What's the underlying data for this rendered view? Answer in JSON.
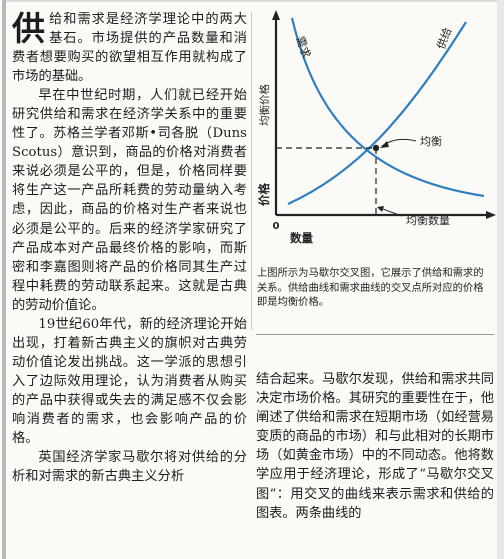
{
  "left": {
    "dropcap": "供",
    "para1": "给和需求是经济学理论中的两大基石。市场提供的产品数量和消费者想要购买的欲望相互作用就构成了市场的基础。",
    "para2": "早在中世纪时期，人们就已经开始研究供给和需求在经济学关系中的重要性了。苏格兰学者邓斯•司各脱（Duns Scotus）意识到，商品的价格对消费者来说必须是公平的，但是，价格同样要将生产这一产品所耗费的劳动量纳入考虑，因此，商品的价格对生产者来说也必须是公平的。后来的经济学家研究了产品成本对产品最终价格的影响，而斯密和李嘉图则将产品的价格同其生产过程中耗费的劳动联系起来。这就是古典的劳动价值论。",
    "para3": "19世纪60年代，新的经济理论开始出现，打着新古典主义的旗帜对古典劳动价值论发出挑战。这一学派的思想引入了边际效用理论，认为消费者从购买的产品中获得或失去的满足感不仅会影响消费者的需求，也会影响产品的价格。",
    "para4": "英国经济学家马歇尔将对供给的分析和对需求的新古典主义分析"
  },
  "figure": {
    "demand_label": "需求",
    "supply_label": "供给",
    "equilibrium_price_label": "均衡价格",
    "equilibrium_label": "均衡",
    "price_axis": "价格",
    "quantity_axis": "数量",
    "origin": "0",
    "equilibrium_quantity_label": "均衡数量",
    "caption": "上图所示为马歇尔交叉图，它展示了供给和需求的关系。供给曲线和需求曲线的交叉点所对应的价格即是均衡价格。"
  },
  "right": {
    "para": "结合起来。马歇尔发现，供给和需求共同决定市场价格。其研究的重要性在于，他阐述了供给和需求在短期市场（如经营易变质的商品的市场）和与此相对的长期市场（如黄金市场）中的不同动态。他将数学应用于经济理论，形成了“马歇尔交叉图”：用交叉的曲线来表示需求和供给的图表。两条曲线的"
  },
  "colors": {
    "curve": "#2f7fc1",
    "text": "#1d1d1d"
  }
}
